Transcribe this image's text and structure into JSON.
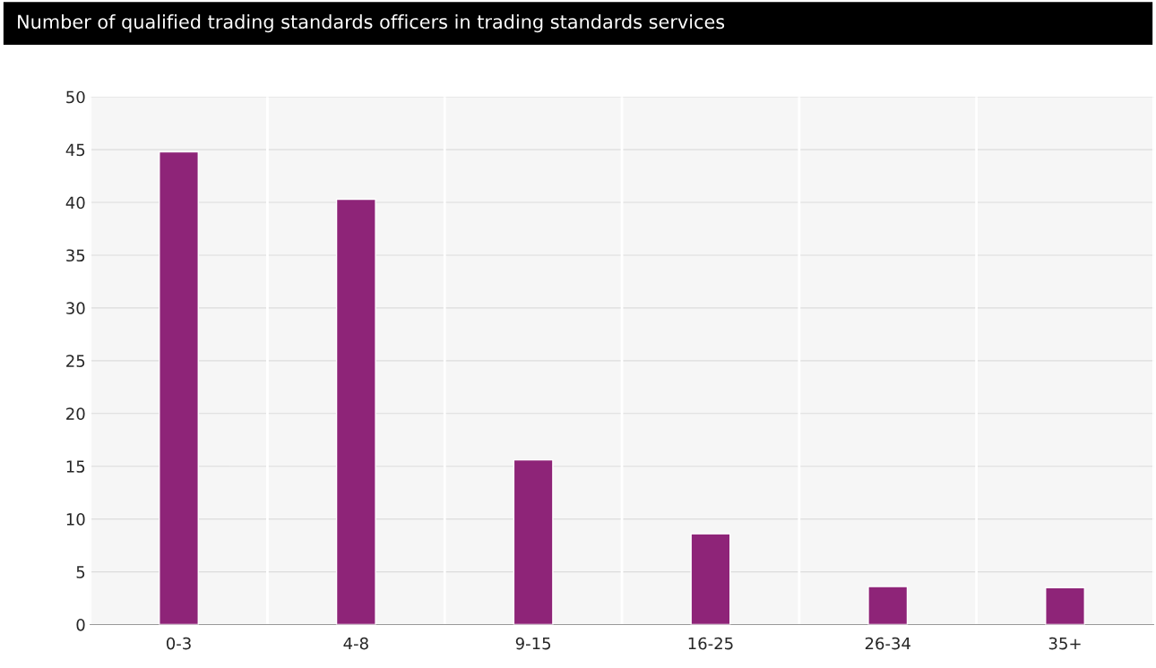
{
  "chart_data": {
    "type": "bar",
    "title": "Number of qualified trading standards officers in trading standards services",
    "categories": [
      "0-3",
      "4-8",
      "9-15",
      "16-25",
      "26-34",
      "35+"
    ],
    "values": [
      44.8,
      40.3,
      15.6,
      8.6,
      3.6,
      3.5
    ],
    "color": "#8e2478",
    "ylim": [
      0,
      50
    ],
    "yticks": [
      0,
      5,
      10,
      15,
      20,
      25,
      30,
      35,
      40,
      45,
      50
    ],
    "grid": true
  }
}
